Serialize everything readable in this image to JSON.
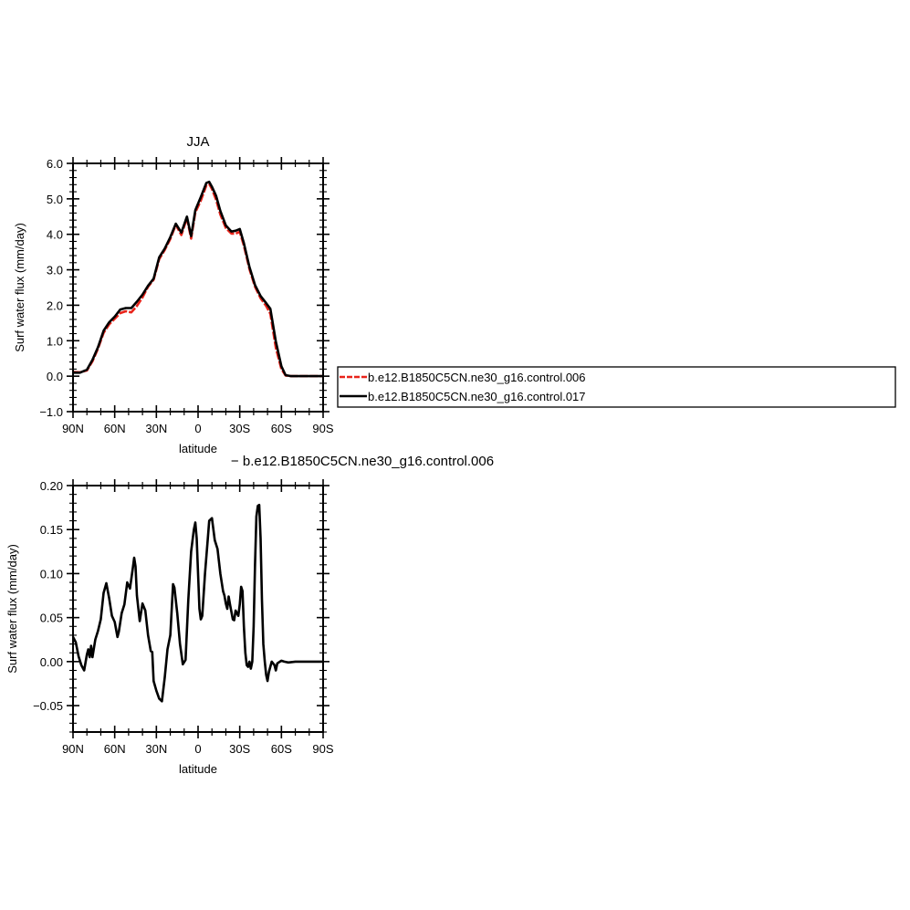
{
  "chart_data": [
    {
      "type": "line",
      "title": "JJA",
      "xlabel": "latitude",
      "ylabel": "Surf water flux (mm/day)",
      "xlim": [
        -90,
        90
      ],
      "ylim": [
        -1.0,
        6.0
      ],
      "x_ticks": [
        {
          "value": -90,
          "label": "90N"
        },
        {
          "value": -60,
          "label": "60N"
        },
        {
          "value": -30,
          "label": "30N"
        },
        {
          "value": 0,
          "label": "0"
        },
        {
          "value": 30,
          "label": "30S"
        },
        {
          "value": 60,
          "label": "60S"
        },
        {
          "value": 90,
          "label": "90S"
        }
      ],
      "y_ticks": [
        {
          "value": -1.0,
          "label": "−1.0"
        },
        {
          "value": 0.0,
          "label": "0.0"
        },
        {
          "value": 1.0,
          "label": "1.0"
        },
        {
          "value": 2.0,
          "label": "2.0"
        },
        {
          "value": 3.0,
          "label": "3.0"
        },
        {
          "value": 4.0,
          "label": "4.0"
        },
        {
          "value": 5.0,
          "label": "5.0"
        },
        {
          "value": 6.0,
          "label": "6.0"
        }
      ],
      "legend_position": "right",
      "series": [
        {
          "name": "b.e12.B1850C5CN.ne30_g16.control.006",
          "color": "#e8231a",
          "dash": true,
          "points": [
            [
              -90,
              0.12
            ],
            [
              -85,
              0.11
            ],
            [
              -80,
              0.16
            ],
            [
              -76,
              0.42
            ],
            [
              -72,
              0.78
            ],
            [
              -68,
              1.22
            ],
            [
              -64,
              1.46
            ],
            [
              -60,
              1.62
            ],
            [
              -56,
              1.78
            ],
            [
              -52,
              1.83
            ],
            [
              -48,
              1.8
            ],
            [
              -44,
              1.98
            ],
            [
              -40,
              2.22
            ],
            [
              -36,
              2.52
            ],
            [
              -32,
              2.72
            ],
            [
              -28,
              3.3
            ],
            [
              -24,
              3.56
            ],
            [
              -20,
              3.87
            ],
            [
              -16,
              4.27
            ],
            [
              -12,
              3.98
            ],
            [
              -8,
              4.46
            ],
            [
              -5,
              3.88
            ],
            [
              -2,
              4.62
            ],
            [
              2,
              4.95
            ],
            [
              6,
              5.38
            ],
            [
              8,
              5.42
            ],
            [
              10,
              5.28
            ],
            [
              13,
              4.97
            ],
            [
              16,
              4.56
            ],
            [
              20,
              4.18
            ],
            [
              24,
              4.02
            ],
            [
              27,
              4.02
            ],
            [
              30,
              4.07
            ],
            [
              33,
              3.68
            ],
            [
              37,
              3.02
            ],
            [
              41,
              2.52
            ],
            [
              45,
              2.2
            ],
            [
              49,
              1.98
            ],
            [
              52,
              1.76
            ],
            [
              56,
              0.8
            ],
            [
              60,
              0.2
            ],
            [
              63,
              0.02
            ],
            [
              67,
              0.0
            ],
            [
              75,
              0.0
            ],
            [
              90,
              0.0
            ]
          ]
        },
        {
          "name": "b.e12.B1850C5CN.ne30_g16.control.017",
          "color": "#000000",
          "dash": false,
          "points": [
            [
              -90,
              0.1
            ],
            [
              -85,
              0.1
            ],
            [
              -80,
              0.18
            ],
            [
              -76,
              0.46
            ],
            [
              -72,
              0.82
            ],
            [
              -68,
              1.28
            ],
            [
              -64,
              1.52
            ],
            [
              -60,
              1.68
            ],
            [
              -56,
              1.88
            ],
            [
              -52,
              1.92
            ],
            [
              -48,
              1.92
            ],
            [
              -44,
              2.1
            ],
            [
              -40,
              2.3
            ],
            [
              -36,
              2.55
            ],
            [
              -32,
              2.75
            ],
            [
              -28,
              3.35
            ],
            [
              -24,
              3.6
            ],
            [
              -20,
              3.92
            ],
            [
              -16,
              4.3
            ],
            [
              -12,
              4.05
            ],
            [
              -8,
              4.5
            ],
            [
              -5,
              3.95
            ],
            [
              -2,
              4.68
            ],
            [
              2,
              5.05
            ],
            [
              6,
              5.45
            ],
            [
              8,
              5.48
            ],
            [
              10,
              5.34
            ],
            [
              13,
              5.08
            ],
            [
              16,
              4.66
            ],
            [
              20,
              4.25
            ],
            [
              24,
              4.08
            ],
            [
              27,
              4.1
            ],
            [
              30,
              4.15
            ],
            [
              33,
              3.75
            ],
            [
              37,
              3.08
            ],
            [
              41,
              2.57
            ],
            [
              45,
              2.26
            ],
            [
              49,
              2.06
            ],
            [
              52,
              1.9
            ],
            [
              56,
              0.98
            ],
            [
              60,
              0.28
            ],
            [
              63,
              0.03
            ],
            [
              67,
              0.0
            ],
            [
              75,
              0.0
            ],
            [
              90,
              0.0
            ]
          ]
        }
      ]
    },
    {
      "type": "line",
      "title": "− b.e12.B1850C5CN.ne30_g16.control.006",
      "xlabel": "latitude",
      "ylabel": "Surf water flux (mm/day)",
      "xlim": [
        -90,
        90
      ],
      "ylim": [
        -0.08,
        0.2
      ],
      "x_ticks": [
        {
          "value": -90,
          "label": "90N"
        },
        {
          "value": -60,
          "label": "60N"
        },
        {
          "value": -30,
          "label": "30N"
        },
        {
          "value": 0,
          "label": "0"
        },
        {
          "value": 30,
          "label": "30S"
        },
        {
          "value": 60,
          "label": "60S"
        },
        {
          "value": 90,
          "label": "90S"
        }
      ],
      "y_ticks": [
        {
          "value": -0.05,
          "label": "−0.05"
        },
        {
          "value": 0.0,
          "label": "0.00"
        },
        {
          "value": 0.05,
          "label": "0.05"
        },
        {
          "value": 0.1,
          "label": "0.10"
        },
        {
          "value": 0.15,
          "label": "0.15"
        },
        {
          "value": 0.2,
          "label": "0.20"
        }
      ],
      "series": [
        {
          "color": "#000000",
          "dash": false,
          "points": [
            [
              -90,
              0.028
            ],
            [
              -88,
              0.022
            ],
            [
              -86,
              0.006
            ],
            [
              -84,
              -0.004
            ],
            [
              -82,
              -0.01
            ],
            [
              -80,
              0.008
            ],
            [
              -79,
              0.014
            ],
            [
              -78,
              0.005
            ],
            [
              -77,
              0.018
            ],
            [
              -76,
              0.005
            ],
            [
              -74,
              0.025
            ],
            [
              -72,
              0.035
            ],
            [
              -70,
              0.048
            ],
            [
              -68,
              0.078
            ],
            [
              -66,
              0.089
            ],
            [
              -64,
              0.072
            ],
            [
              -62,
              0.052
            ],
            [
              -60,
              0.045
            ],
            [
              -58,
              0.028
            ],
            [
              -57,
              0.034
            ],
            [
              -55,
              0.055
            ],
            [
              -53,
              0.065
            ],
            [
              -51,
              0.09
            ],
            [
              -49,
              0.083
            ],
            [
              -47,
              0.106
            ],
            [
              -46,
              0.118
            ],
            [
              -45,
              0.108
            ],
            [
              -44,
              0.075
            ],
            [
              -42,
              0.046
            ],
            [
              -40,
              0.066
            ],
            [
              -38,
              0.058
            ],
            [
              -36,
              0.03
            ],
            [
              -34,
              0.012
            ],
            [
              -33,
              0.011
            ],
            [
              -32,
              -0.022
            ],
            [
              -30,
              -0.033
            ],
            [
              -28,
              -0.042
            ],
            [
              -26,
              -0.045
            ],
            [
              -24,
              -0.018
            ],
            [
              -22,
              0.014
            ],
            [
              -20,
              0.03
            ],
            [
              -18,
              0.088
            ],
            [
              -17,
              0.084
            ],
            [
              -15,
              0.055
            ],
            [
              -13,
              0.02
            ],
            [
              -11,
              -0.003
            ],
            [
              -9,
              0.002
            ],
            [
              -7,
              0.07
            ],
            [
              -5,
              0.125
            ],
            [
              -3,
              0.15
            ],
            [
              -2,
              0.158
            ],
            [
              -1,
              0.14
            ],
            [
              1,
              0.06
            ],
            [
              2,
              0.048
            ],
            [
              3,
              0.052
            ],
            [
              5,
              0.1
            ],
            [
              7,
              0.14
            ],
            [
              8,
              0.16
            ],
            [
              10,
              0.163
            ],
            [
              12,
              0.138
            ],
            [
              14,
              0.128
            ],
            [
              16,
              0.1
            ],
            [
              18,
              0.08
            ],
            [
              19,
              0.075
            ],
            [
              20,
              0.066
            ],
            [
              21,
              0.06
            ],
            [
              22,
              0.074
            ],
            [
              23,
              0.065
            ],
            [
              25,
              0.048
            ],
            [
              26,
              0.047
            ],
            [
              27,
              0.058
            ],
            [
              29,
              0.052
            ],
            [
              30,
              0.065
            ],
            [
              31,
              0.085
            ],
            [
              32,
              0.08
            ],
            [
              33,
              0.04
            ],
            [
              34,
              0.01
            ],
            [
              35,
              -0.004
            ],
            [
              36,
              -0.006
            ],
            [
              37,
              0.0
            ],
            [
              38,
              -0.008
            ],
            [
              39,
              0.0
            ],
            [
              40,
              0.04
            ],
            [
              41,
              0.11
            ],
            [
              42,
              0.165
            ],
            [
              43,
              0.177
            ],
            [
              44,
              0.178
            ],
            [
              45,
              0.14
            ],
            [
              46,
              0.07
            ],
            [
              47,
              0.02
            ],
            [
              48,
              0.0
            ],
            [
              49,
              -0.015
            ],
            [
              50,
              -0.022
            ],
            [
              51,
              -0.012
            ],
            [
              53,
              0.0
            ],
            [
              55,
              -0.004
            ],
            [
              56,
              -0.01
            ],
            [
              57,
              -0.002
            ],
            [
              58,
              -0.001
            ],
            [
              60,
              0.001
            ],
            [
              62,
              0.0
            ],
            [
              65,
              -0.001
            ],
            [
              70,
              0.0
            ],
            [
              90,
              0.0
            ]
          ]
        }
      ]
    }
  ]
}
